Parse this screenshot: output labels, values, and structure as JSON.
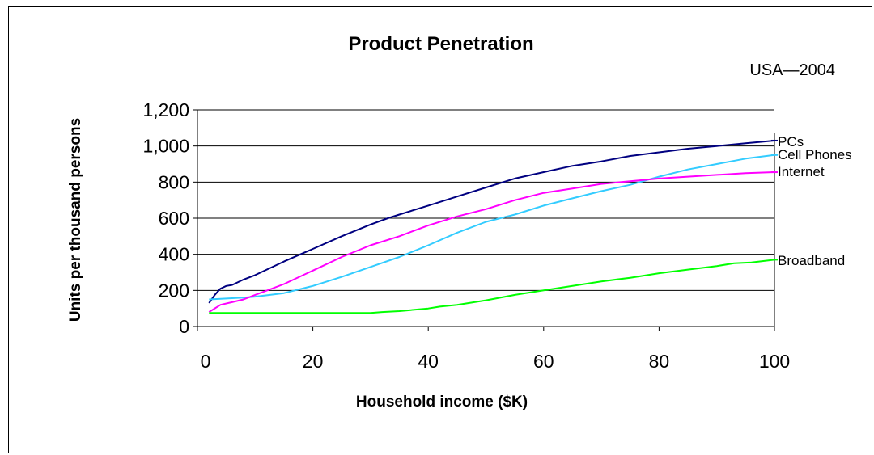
{
  "chart_data": {
    "type": "line",
    "title": "Product Penetration",
    "subtitle": "USA—2004",
    "xlabel": "Household income ($K)",
    "ylabel": "Units per thousand persons",
    "xlim": [
      0,
      100
    ],
    "ylim": [
      0,
      1200
    ],
    "x_ticks": [
      "0",
      "20",
      "40",
      "60",
      "80",
      "100"
    ],
    "y_ticks": [
      "0",
      "200",
      "400",
      "600",
      "800",
      "1,000",
      "1,200"
    ],
    "grid": true,
    "legend": "series labels at right end of lines",
    "series": [
      {
        "name": "PCs",
        "color": "#000080",
        "x": [
          2,
          3,
          4,
          5,
          6,
          8,
          10,
          12,
          15,
          20,
          25,
          30,
          33,
          35,
          38,
          40,
          45,
          50,
          55,
          60,
          65,
          70,
          75,
          80,
          85,
          90,
          95,
          100
        ],
        "y": [
          130,
          175,
          210,
          225,
          230,
          260,
          285,
          315,
          360,
          430,
          500,
          565,
          600,
          620,
          650,
          670,
          720,
          770,
          820,
          855,
          890,
          915,
          945,
          965,
          985,
          1000,
          1015,
          1030
        ]
      },
      {
        "name": "Cell Phones",
        "color": "#33ccff",
        "x": [
          2,
          5,
          8,
          10,
          15,
          20,
          25,
          30,
          35,
          40,
          45,
          50,
          55,
          60,
          65,
          70,
          75,
          80,
          85,
          90,
          95,
          100
        ],
        "y": [
          150,
          155,
          160,
          165,
          185,
          225,
          275,
          330,
          385,
          450,
          520,
          580,
          620,
          670,
          710,
          750,
          785,
          830,
          870,
          900,
          930,
          950
        ]
      },
      {
        "name": "Internet",
        "color": "#ff00ff",
        "x": [
          2,
          4,
          6,
          8,
          10,
          15,
          20,
          25,
          30,
          35,
          40,
          45,
          50,
          55,
          60,
          65,
          70,
          75,
          80,
          85,
          90,
          95,
          100
        ],
        "y": [
          80,
          120,
          135,
          150,
          175,
          235,
          310,
          385,
          450,
          500,
          560,
          610,
          650,
          700,
          740,
          765,
          790,
          805,
          820,
          830,
          840,
          850,
          855
        ]
      },
      {
        "name": "Broadband",
        "color": "#00ff00",
        "x": [
          2,
          10,
          20,
          30,
          32,
          35,
          40,
          42,
          45,
          50,
          55,
          60,
          65,
          70,
          75,
          80,
          85,
          90,
          93,
          96,
          100
        ],
        "y": [
          75,
          75,
          75,
          75,
          80,
          85,
          100,
          110,
          120,
          145,
          175,
          200,
          225,
          250,
          270,
          295,
          315,
          335,
          350,
          355,
          370
        ]
      }
    ]
  }
}
